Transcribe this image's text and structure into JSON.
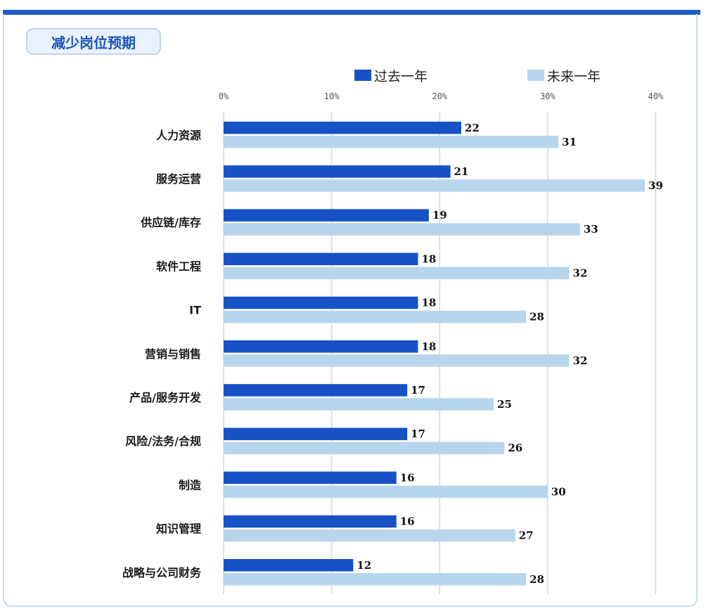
{
  "title": "减少岗位预期",
  "legend": [
    {
      "label": "过去一年",
      "color": "#1652c6"
    },
    {
      "label": "未来一年",
      "color": "#b8d5ee"
    }
  ],
  "chart_data": {
    "type": "bar",
    "orientation": "horizontal",
    "title": "减少岗位预期",
    "xlim": [
      0,
      40
    ],
    "xticks": [
      "0%",
      "10%",
      "20%",
      "30%",
      "40%"
    ],
    "grid": true,
    "legend_position": "top",
    "categories": [
      "人力资源",
      "服务运营",
      "供应链/库存",
      "软件工程",
      "IT",
      "营销与销售",
      "产品/服务开发",
      "风险/法务/合规",
      "制造",
      "知识管理",
      "战略与公司财务"
    ],
    "series": [
      {
        "name": "过去一年",
        "color": "#1652c6",
        "values": [
          22,
          21,
          19,
          18,
          18,
          18,
          17,
          17,
          16,
          16,
          12
        ]
      },
      {
        "name": "未来一年",
        "color": "#b8d5ee",
        "values": [
          31,
          39,
          33,
          32,
          28,
          32,
          25,
          26,
          30,
          27,
          28
        ]
      }
    ]
  }
}
